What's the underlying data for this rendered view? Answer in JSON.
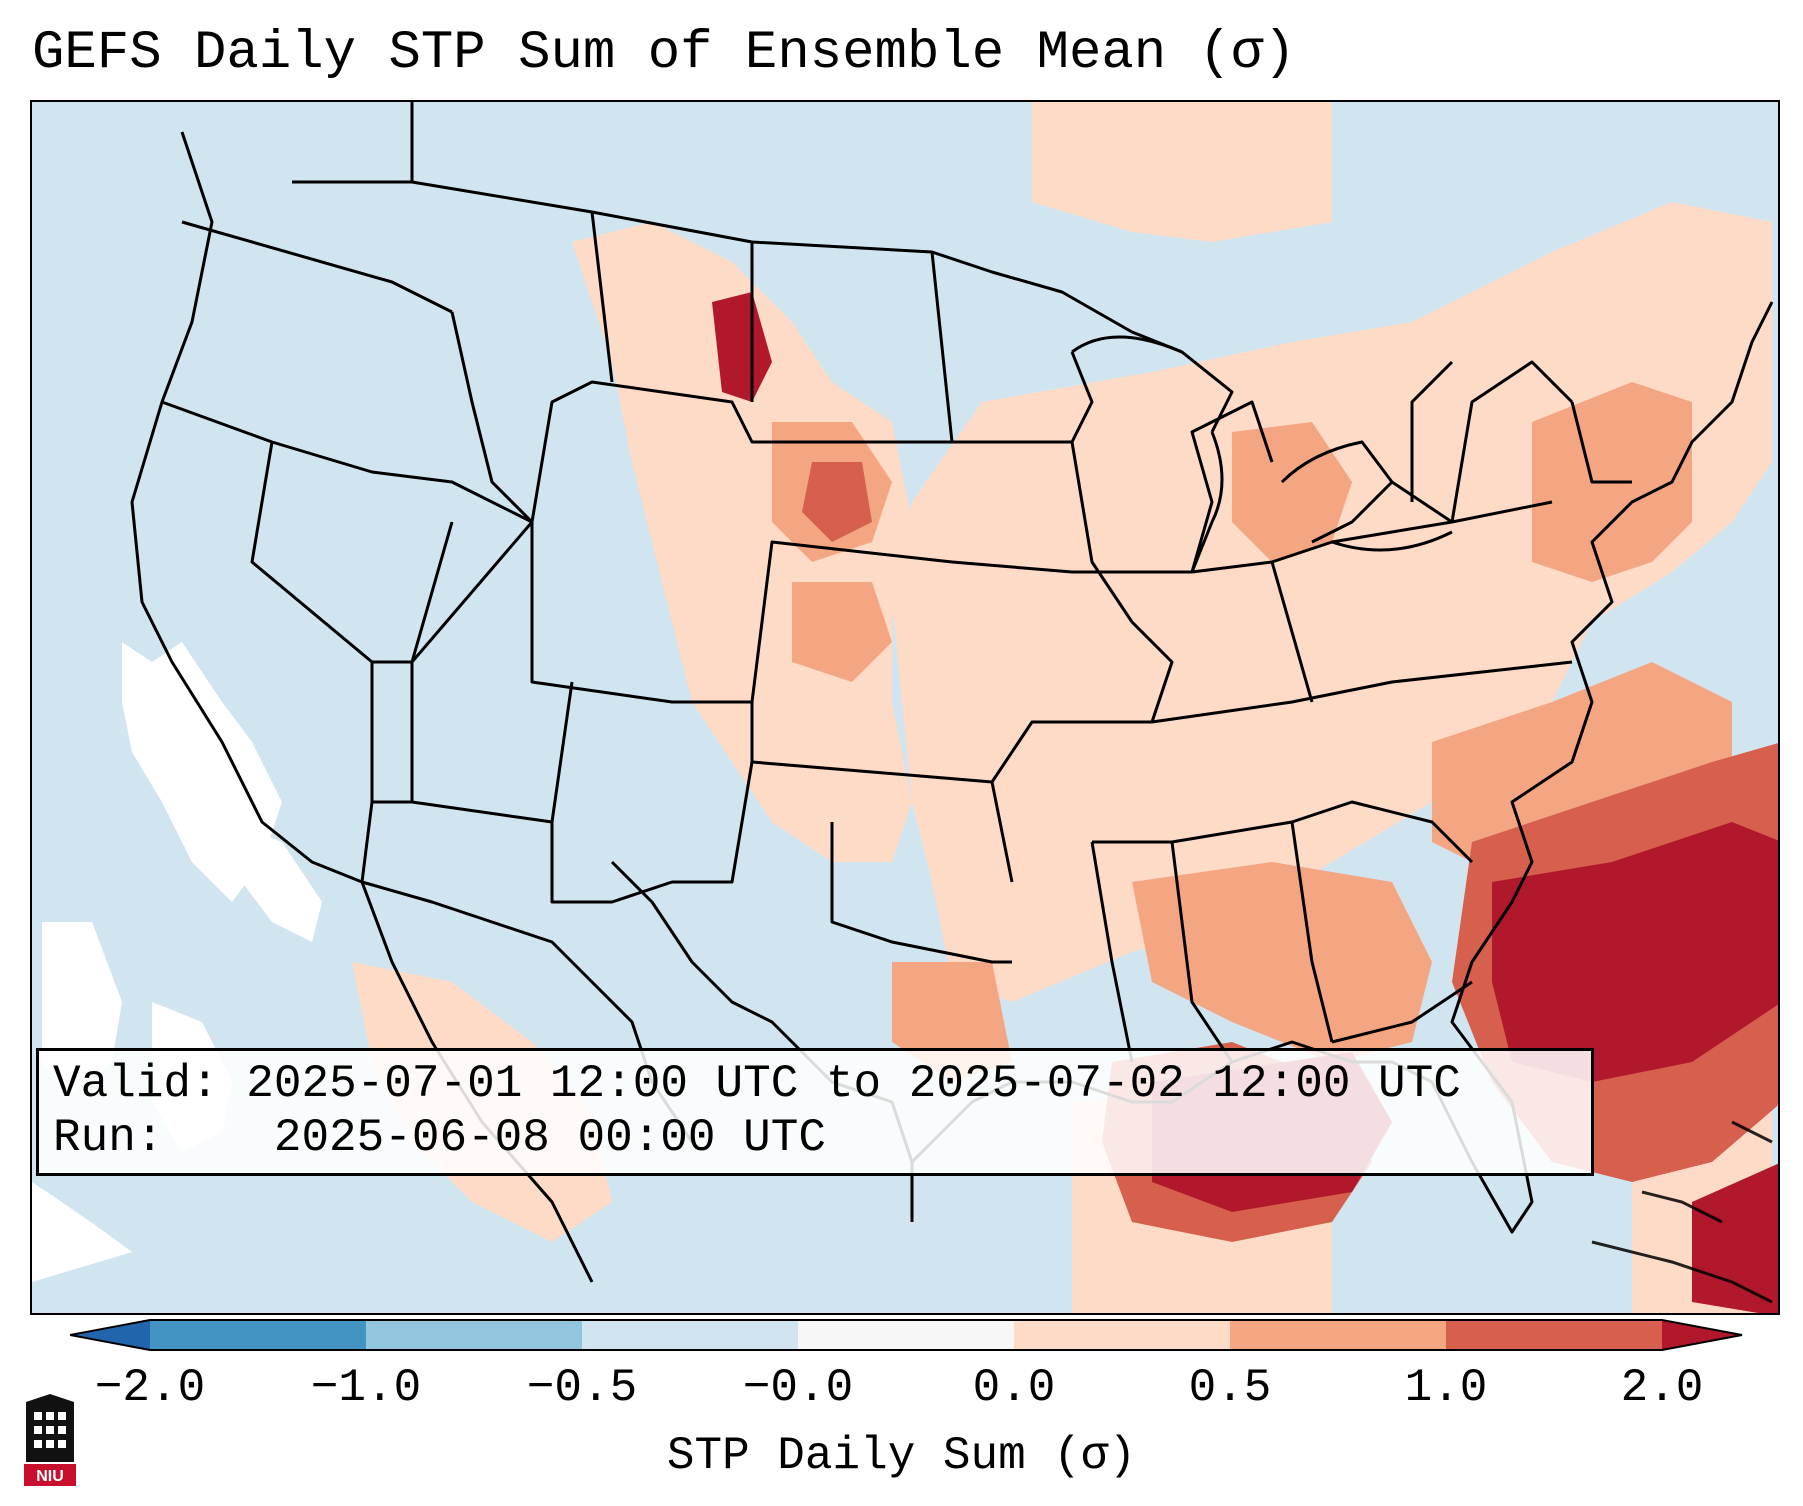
{
  "title": "GEFS Daily STP Sum of Ensemble Mean (σ)",
  "map": {
    "type": "heatmap",
    "region": "Continental United States",
    "units": "σ"
  },
  "info": {
    "valid_label": "Valid:",
    "valid_value": "2025-07-01 12:00 UTC to 2025-07-02 12:00 UTC",
    "run_label": "Run:",
    "run_value": "2025-06-08 00:00 UTC"
  },
  "colorbar": {
    "label": "STP Daily Sum (σ)",
    "ticks": [
      "−2.0",
      "−1.0",
      "−0.5",
      "−0.0",
      "0.0",
      "0.5",
      "1.0",
      "2.0"
    ],
    "bin_colors": [
      "#4393c3",
      "#92c5de",
      "#d1e5f0",
      "#f7f7f7",
      "#fddbc7",
      "#f4a582",
      "#d6604d"
    ],
    "under_color": "#2166ac",
    "over_color": "#b2182b"
  },
  "logo": {
    "text": "NIU"
  }
}
